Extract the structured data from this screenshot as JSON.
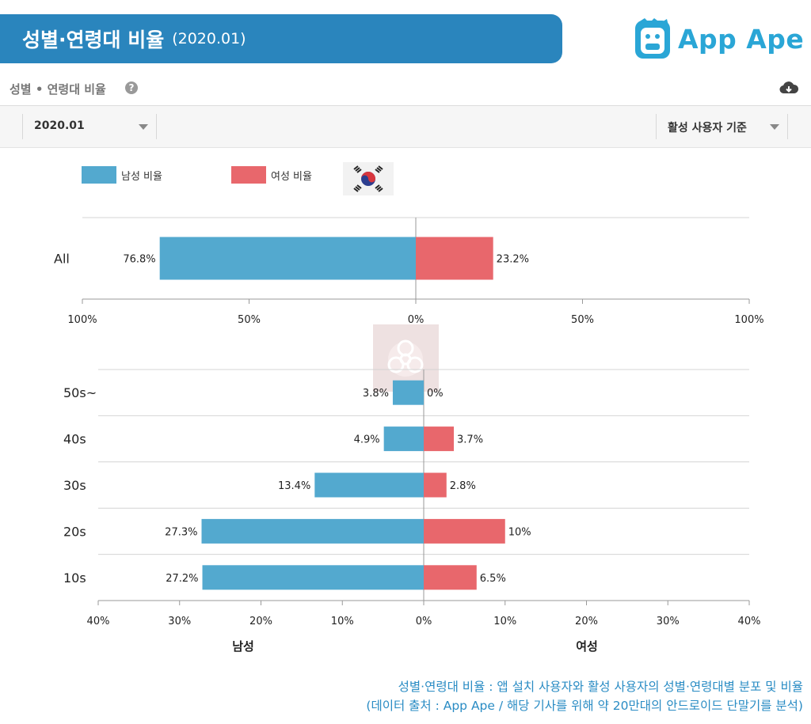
{
  "header": {
    "title": "성별·연령대 비율",
    "date": "(2020.01)",
    "logo_text": "App Ape"
  },
  "section": {
    "title": "성별 • 연령대 비율",
    "help": "?"
  },
  "filters": {
    "date_value": "2020.01",
    "mode_value": "활성 사용자 기준"
  },
  "legend": {
    "male": "남성 비율",
    "female": "여성 비율"
  },
  "colors": {
    "male": "#53a9cf",
    "female": "#e8676c",
    "banner": "#2a85bd",
    "logo": "#2aa6d6"
  },
  "chart_data": [
    {
      "type": "bar",
      "orientation": "horizontal-diverging",
      "categories": [
        "All"
      ],
      "series": [
        {
          "name": "남성 비율",
          "values": [
            76.8
          ]
        },
        {
          "name": "여성 비율",
          "values": [
            23.2
          ]
        }
      ],
      "value_labels": {
        "male": [
          "76.8%"
        ],
        "female": [
          "23.2%"
        ]
      },
      "xlim": [
        -100,
        100
      ],
      "xticks": [
        "100%",
        "50%",
        "0%",
        "50%",
        "100%"
      ]
    },
    {
      "type": "bar",
      "orientation": "horizontal-diverging",
      "categories": [
        "50s~",
        "40s",
        "30s",
        "20s",
        "10s"
      ],
      "series": [
        {
          "name": "남성 비율",
          "values": [
            3.8,
            4.9,
            13.4,
            27.3,
            27.2
          ]
        },
        {
          "name": "여성 비율",
          "values": [
            0,
            3.7,
            2.8,
            10,
            6.5
          ]
        }
      ],
      "value_labels": {
        "male": [
          "3.8%",
          "4.9%",
          "13.4%",
          "27.3%",
          "27.2%"
        ],
        "female": [
          "0%",
          "3.7%",
          "2.8%",
          "10%",
          "6.5%"
        ]
      },
      "xlim": [
        -40,
        40
      ],
      "xticks": [
        "40%",
        "30%",
        "20%",
        "10%",
        "0%",
        "10%",
        "20%",
        "30%",
        "40%"
      ],
      "xlabel_left": "남성",
      "xlabel_right": "여성"
    }
  ],
  "footnote": {
    "line1": "성별·연령대 비율 : 앱 설치 사용자와 활성 사용자의 성별·연령대별 분포 및 비율",
    "line2": "(데이터 출처 : App Ape / 해당 기사를 위해 약 20만대의 안드로이드 단말기를 분석)"
  }
}
